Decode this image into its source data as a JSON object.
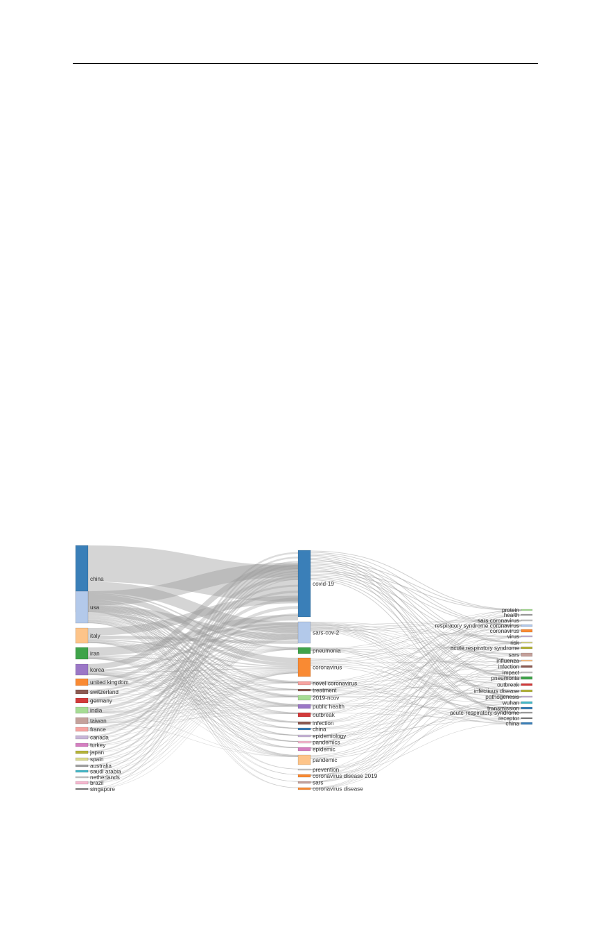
{
  "sankey": {
    "type": "sankey",
    "columns": {
      "countries": [
        {
          "label": "china",
          "color": "#3a7fb8"
        },
        {
          "label": "usa",
          "color": "#b3c9ea"
        },
        {
          "label": "italy",
          "color": "#fdc489"
        },
        {
          "label": "iran",
          "color": "#3fa34a"
        },
        {
          "label": "korea",
          "color": "#9b77c6"
        },
        {
          "label": "united kingdom",
          "color": "#f98a33"
        },
        {
          "label": "switzerland",
          "color": "#8c5a52"
        },
        {
          "label": "germany",
          "color": "#d23a3a"
        },
        {
          "label": "india",
          "color": "#a6dc94"
        },
        {
          "label": "taiwan",
          "color": "#c4a19b"
        },
        {
          "label": "france",
          "color": "#f6a3a0"
        },
        {
          "label": "canada",
          "color": "#c8b6d8"
        },
        {
          "label": "turkey",
          "color": "#d47ec0"
        },
        {
          "label": "japan",
          "color": "#b5b43a"
        },
        {
          "label": "spain",
          "color": "#dad98e"
        },
        {
          "label": "australia",
          "color": "#a3a3a3"
        },
        {
          "label": "saudi arabia",
          "color": "#45b8c8"
        },
        {
          "label": "netherlands",
          "color": "#c8c8c8"
        },
        {
          "label": "brazil",
          "color": "#f5b8cf"
        },
        {
          "label": "singapore",
          "color": "#7d7d7d"
        }
      ],
      "author_keywords": [
        {
          "label": "covid-19",
          "color": "#3a7fb8"
        },
        {
          "label": "sars-cov-2",
          "color": "#b3c9ea"
        },
        {
          "label": "pneumonia",
          "color": "#3fa34a"
        },
        {
          "label": "coronavirus",
          "color": "#f98a33"
        },
        {
          "label": "novel coronavirus",
          "color": "#f6a3a0"
        },
        {
          "label": "treatment",
          "color": "#8c5a52"
        },
        {
          "label": "2019-ncov",
          "color": "#a6dc94"
        },
        {
          "label": "public health",
          "color": "#9b77c6"
        },
        {
          "label": "outbreak",
          "color": "#d23a3a"
        },
        {
          "label": "infection",
          "color": "#8c5a52"
        },
        {
          "label": "china",
          "color": "#3a7fb8"
        },
        {
          "label": "epidemiology",
          "color": "#c8b6d8"
        },
        {
          "label": "pandemics",
          "color": "#f5b8cf"
        },
        {
          "label": "epidemic",
          "color": "#d47ec0"
        },
        {
          "label": "pandemic",
          "color": "#fdc489"
        },
        {
          "label": "prevention",
          "color": "#c8c8c8"
        },
        {
          "label": "coronavirus disease 2019",
          "color": "#f98a33"
        },
        {
          "label": "sars",
          "color": "#c4a19b"
        },
        {
          "label": "coronavirus disease",
          "color": "#f98a33"
        }
      ],
      "keywords_plus": [
        {
          "label": "protein",
          "color": "#a6dc94"
        },
        {
          "label": "health",
          "color": "#a3a3a3"
        },
        {
          "label": "sars coronavirus",
          "color": "#c8c8c8"
        },
        {
          "label": "respiratory syndrome coronavirus",
          "color": "#b3c9ea"
        },
        {
          "label": "coronavirus",
          "color": "#f98a33"
        },
        {
          "label": "virus",
          "color": "#c8b6d8"
        },
        {
          "label": "risk",
          "color": "#dad98e"
        },
        {
          "label": "acute respiratory syndrome",
          "color": "#b5b43a"
        },
        {
          "label": "sars",
          "color": "#c4a19b"
        },
        {
          "label": "influenza",
          "color": "#fdc489"
        },
        {
          "label": "infection",
          "color": "#8c5a52"
        },
        {
          "label": "impact",
          "color": "#c8c8c8"
        },
        {
          "label": "pneumonia",
          "color": "#3fa34a"
        },
        {
          "label": "outbreak",
          "color": "#d23a3a"
        },
        {
          "label": "infectious disease",
          "color": "#b5b43a"
        },
        {
          "label": "pathogenesis",
          "color": "#c8b6d8"
        },
        {
          "label": "wuhan",
          "color": "#45b8c8"
        },
        {
          "label": "transmission",
          "color": "#3a7fb8"
        },
        {
          "label": "acute-respiratory-syndrome",
          "color": "#a3a3a3"
        },
        {
          "label": "receptor",
          "color": "#7d7d7d"
        },
        {
          "label": "china",
          "color": "#3a7fb8"
        }
      ]
    },
    "link_color": "#9a9a9a"
  }
}
